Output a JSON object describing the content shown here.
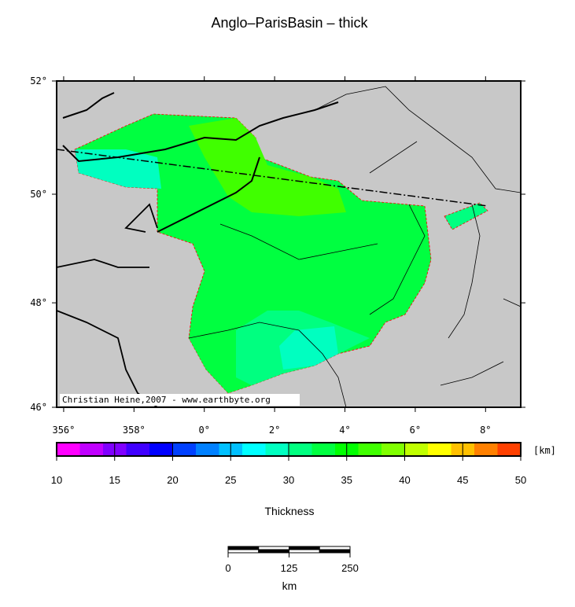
{
  "map": {
    "title": "Anglo–ParisBasin – thick",
    "credit": "Christian Heine,2007 - www.earthbyte.org",
    "lonlim": [
      355.8,
      369
    ],
    "latlim": [
      46,
      52
    ],
    "lon_ticks": [
      {
        "value": 356,
        "label": "356°"
      },
      {
        "value": 358,
        "label": "358°"
      },
      {
        "value": 360,
        "label": "0°"
      },
      {
        "value": 362,
        "label": "2°"
      },
      {
        "value": 364,
        "label": "4°"
      },
      {
        "value": 366,
        "label": "6°"
      },
      {
        "value": 368,
        "label": "8°"
      }
    ],
    "lat_ticks": [
      {
        "value": 52,
        "label": "52°"
      },
      {
        "value": 50,
        "label": "50°"
      },
      {
        "value": 48,
        "label": "48°"
      },
      {
        "value": 46,
        "label": "46°"
      }
    ],
    "colorbar": {
      "ticks": [
        10,
        15,
        20,
        25,
        30,
        35,
        40,
        45,
        50
      ],
      "unit": "[km]",
      "label": "Thickness",
      "colors": [
        "#ff00ff",
        "#c000ff",
        "#8000ff",
        "#4000ff",
        "#0000ff",
        "#0040ff",
        "#0080ff",
        "#00c0ff",
        "#00ffff",
        "#00ffc0",
        "#00ff80",
        "#00ff40",
        "#00ff00",
        "#40ff00",
        "#80ff00",
        "#c0ff00",
        "#ffff00",
        "#ffc000",
        "#ff8000",
        "#ff4000"
      ]
    },
    "scalebar": {
      "ticks": [
        0,
        125,
        250
      ],
      "unit": "km"
    }
  }
}
